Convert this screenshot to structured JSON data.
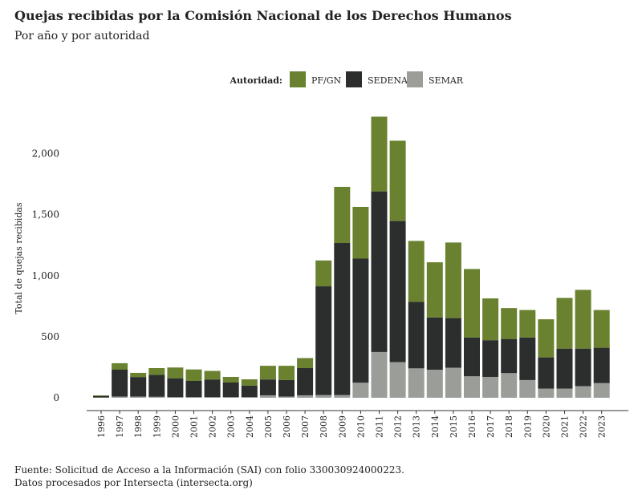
{
  "chart_data": {
    "type": "bar",
    "stacked": true,
    "title": "Quejas recibidas por la Comisión Nacional de los Derechos Humanos",
    "subtitle": "Por año y por autoridad",
    "xlabel": "",
    "ylabel": "Total de quejas recibidas",
    "ylim": [
      0,
      2300
    ],
    "yticks": [
      0,
      500,
      1000,
      1500,
      2000
    ],
    "ytick_labels": [
      "0",
      "500",
      "1,000",
      "1,500",
      "2,000"
    ],
    "legend_title": "Autoridad:",
    "legend_position": "top-center",
    "categories": [
      "1996",
      "1997",
      "1998",
      "1999",
      "2000",
      "2001",
      "2002",
      "2003",
      "2004",
      "2005",
      "2006",
      "2007",
      "2008",
      "2009",
      "2010",
      "2011",
      "2012",
      "2013",
      "2014",
      "2015",
      "2016",
      "2017",
      "2018",
      "2019",
      "2020",
      "2021",
      "2022",
      "2023"
    ],
    "series": [
      {
        "name": "SEMAR",
        "color": "#9a9d98",
        "values": [
          2,
          10,
          10,
          8,
          5,
          5,
          5,
          5,
          5,
          20,
          10,
          20,
          22,
          22,
          123,
          375,
          292,
          241,
          230,
          246,
          176,
          171,
          202,
          145,
          75,
          75,
          95,
          120
        ]
      },
      {
        "name": "SEDENA",
        "color": "#2b2e2c",
        "values": [
          13,
          220,
          160,
          180,
          155,
          133,
          145,
          120,
          95,
          130,
          135,
          223,
          891,
          1246,
          1017,
          1316,
          1156,
          544,
          428,
          407,
          318,
          301,
          280,
          349,
          256,
          328,
          308,
          290
        ]
      },
      {
        "name": "PF/GN",
        "color": "#6a822f",
        "values": [
          5,
          53,
          34,
          55,
          88,
          94,
          70,
          46,
          51,
          112,
          117,
          82,
          212,
          460,
          424,
          612,
          658,
          500,
          452,
          619,
          561,
          342,
          253,
          225,
          312,
          415,
          481,
          309
        ]
      }
    ],
    "legend_order": [
      "PF/GN",
      "SEDENA",
      "SEMAR"
    ],
    "footer": [
      "Fuente: Solicitud de Acceso a la Información (SAI) con folio 330030924000223.",
      "Datos procesados por Intersecta (intersecta.org)"
    ]
  }
}
